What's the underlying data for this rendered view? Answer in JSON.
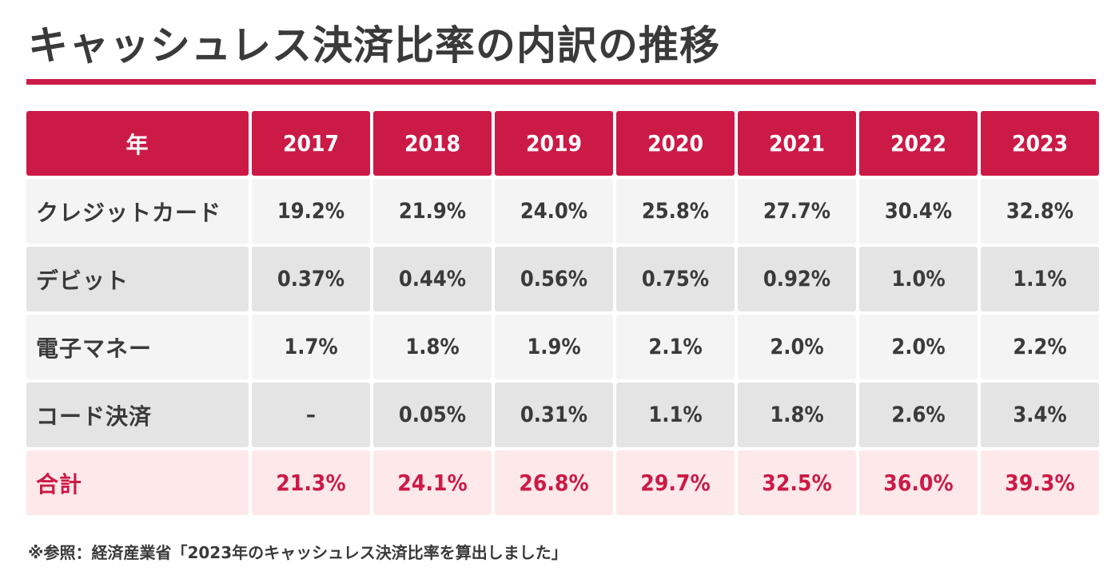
{
  "title": "キャッシュレス決済比率の内訳の推移",
  "colors": {
    "accent": "#cc1a46",
    "row_light": "#f4f4f4",
    "row_dark": "#e4e4e4",
    "total_bg": "#fde8ea",
    "text_dark": "#3a3a3a",
    "header_text": "#ffffff"
  },
  "chart_data": {
    "type": "table",
    "title": "キャッシュレス決済比率の内訳の推移",
    "columns": [
      "年",
      "2017",
      "2018",
      "2019",
      "2020",
      "2021",
      "2022",
      "2023"
    ],
    "rows": [
      {
        "label": "クレジットカード",
        "values": [
          "19.2%",
          "21.9%",
          "24.0%",
          "25.8%",
          "27.7%",
          "30.4%",
          "32.8%"
        ]
      },
      {
        "label": "デビット",
        "values": [
          "0.37%",
          "0.44%",
          "0.56%",
          "0.75%",
          "0.92%",
          "1.0%",
          "1.1%"
        ]
      },
      {
        "label": "電子マネー",
        "values": [
          "1.7%",
          "1.8%",
          "1.9%",
          "2.1%",
          "2.0%",
          "2.0%",
          "2.2%"
        ]
      },
      {
        "label": "コード決済",
        "values": [
          "–",
          "0.05%",
          "0.31%",
          "1.1%",
          "1.8%",
          "2.6%",
          "3.4%"
        ]
      },
      {
        "label": "合計",
        "values": [
          "21.3%",
          "24.1%",
          "26.8%",
          "29.7%",
          "32.5%",
          "36.0%",
          "39.3%"
        ]
      }
    ]
  },
  "footnote": "※参照：経済産業省「2023年のキャッシュレス決済比率を算出しました」"
}
